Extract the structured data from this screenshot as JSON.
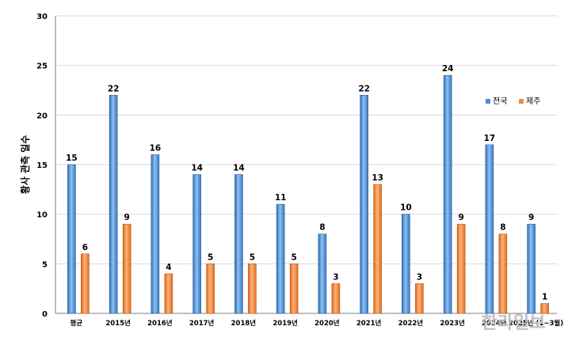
{
  "chart_data": {
    "type": "bar",
    "ylabel": "황사 관측 일수",
    "ylim": [
      0,
      30
    ],
    "yticks": [
      0,
      5,
      10,
      15,
      20,
      25,
      30
    ],
    "grid": true,
    "legend_position": "right",
    "categories": [
      "평균",
      "2015년",
      "2016년",
      "2017년",
      "2018년",
      "2019년",
      "2020년",
      "2021년",
      "2022년",
      "2023년",
      "2024년",
      "2025년 (1~3월)"
    ],
    "series": [
      {
        "name": "전국",
        "color": "#4f8fd6",
        "values": [
          15,
          22,
          16,
          14,
          14,
          11,
          8,
          22,
          10,
          24,
          17,
          9
        ]
      },
      {
        "name": "제주",
        "color": "#f08a3e",
        "values": [
          6,
          9,
          4,
          5,
          5,
          5,
          3,
          13,
          3,
          9,
          8,
          1
        ]
      }
    ]
  },
  "watermark": "한라일보"
}
